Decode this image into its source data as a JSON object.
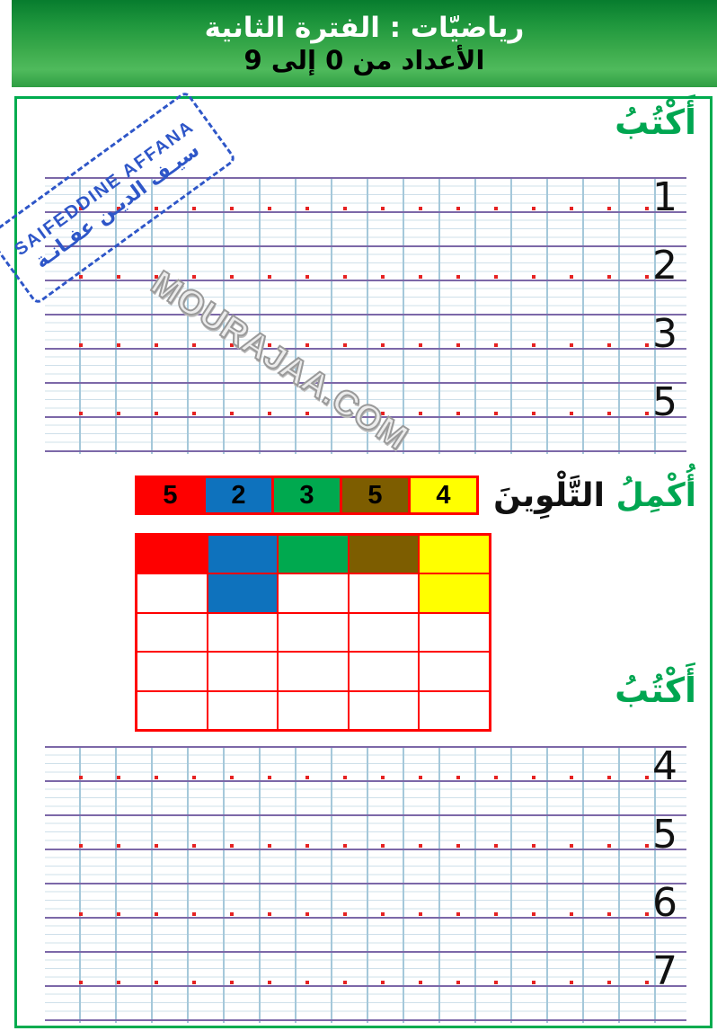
{
  "header": {
    "line1": "رياضيّات : الفترة الثانية",
    "line2": "الأعداد من 0 إلى 9"
  },
  "stamp": {
    "line1": "SAIFEDDINE AFFANA",
    "line2": "سيـف الديـن عفـانـة"
  },
  "watermark": "MOURAJAA.COM",
  "write_top": {
    "heading": "أَكْتُبُ",
    "digits": [
      "1",
      "2",
      "3",
      "5"
    ]
  },
  "coloring": {
    "heading_green": "أُكْمِلُ",
    "heading_black": "التَّلْوِينَ",
    "legend": [
      {
        "count": "5",
        "color_name": "red"
      },
      {
        "count": "2",
        "color_name": "blue"
      },
      {
        "count": "3",
        "color_name": "green"
      },
      {
        "count": "5",
        "color_name": "brown"
      },
      {
        "count": "4",
        "color_name": "yellow"
      }
    ],
    "grid_cells": [
      [
        "red",
        "blue",
        "green",
        "brown",
        "yellow"
      ],
      [
        "",
        "blue",
        "",
        "",
        "yellow"
      ],
      [
        "",
        "",
        "",
        "",
        ""
      ],
      [
        "",
        "",
        "",
        "",
        ""
      ],
      [
        "",
        "",
        "",
        "",
        ""
      ]
    ]
  },
  "write_bottom": {
    "heading": "أَكْتُبُ",
    "digits": [
      "4",
      "5",
      "6",
      "7"
    ]
  },
  "colors": {
    "palette": {
      "red": "#fe0000",
      "blue": "#0e72bd",
      "green": "#00a94f",
      "brown": "#7d5d00",
      "yellow": "#ffff00"
    },
    "table_border_red": "#ff0000",
    "frame_green": "#00ac4f",
    "heading_green": "#00a651",
    "banner_green_dark": "#077c2e",
    "banner_green_light": "#4fba5c",
    "stamp_blue": "#2e56c8",
    "trace_dot_red": "#e62222",
    "grid_major_purple": "#7c68a8",
    "grid_vertical_blue": "#a5c8da",
    "grid_thin_blue": "#cfe0ea",
    "watermark_gray": "#9a9a9a"
  }
}
